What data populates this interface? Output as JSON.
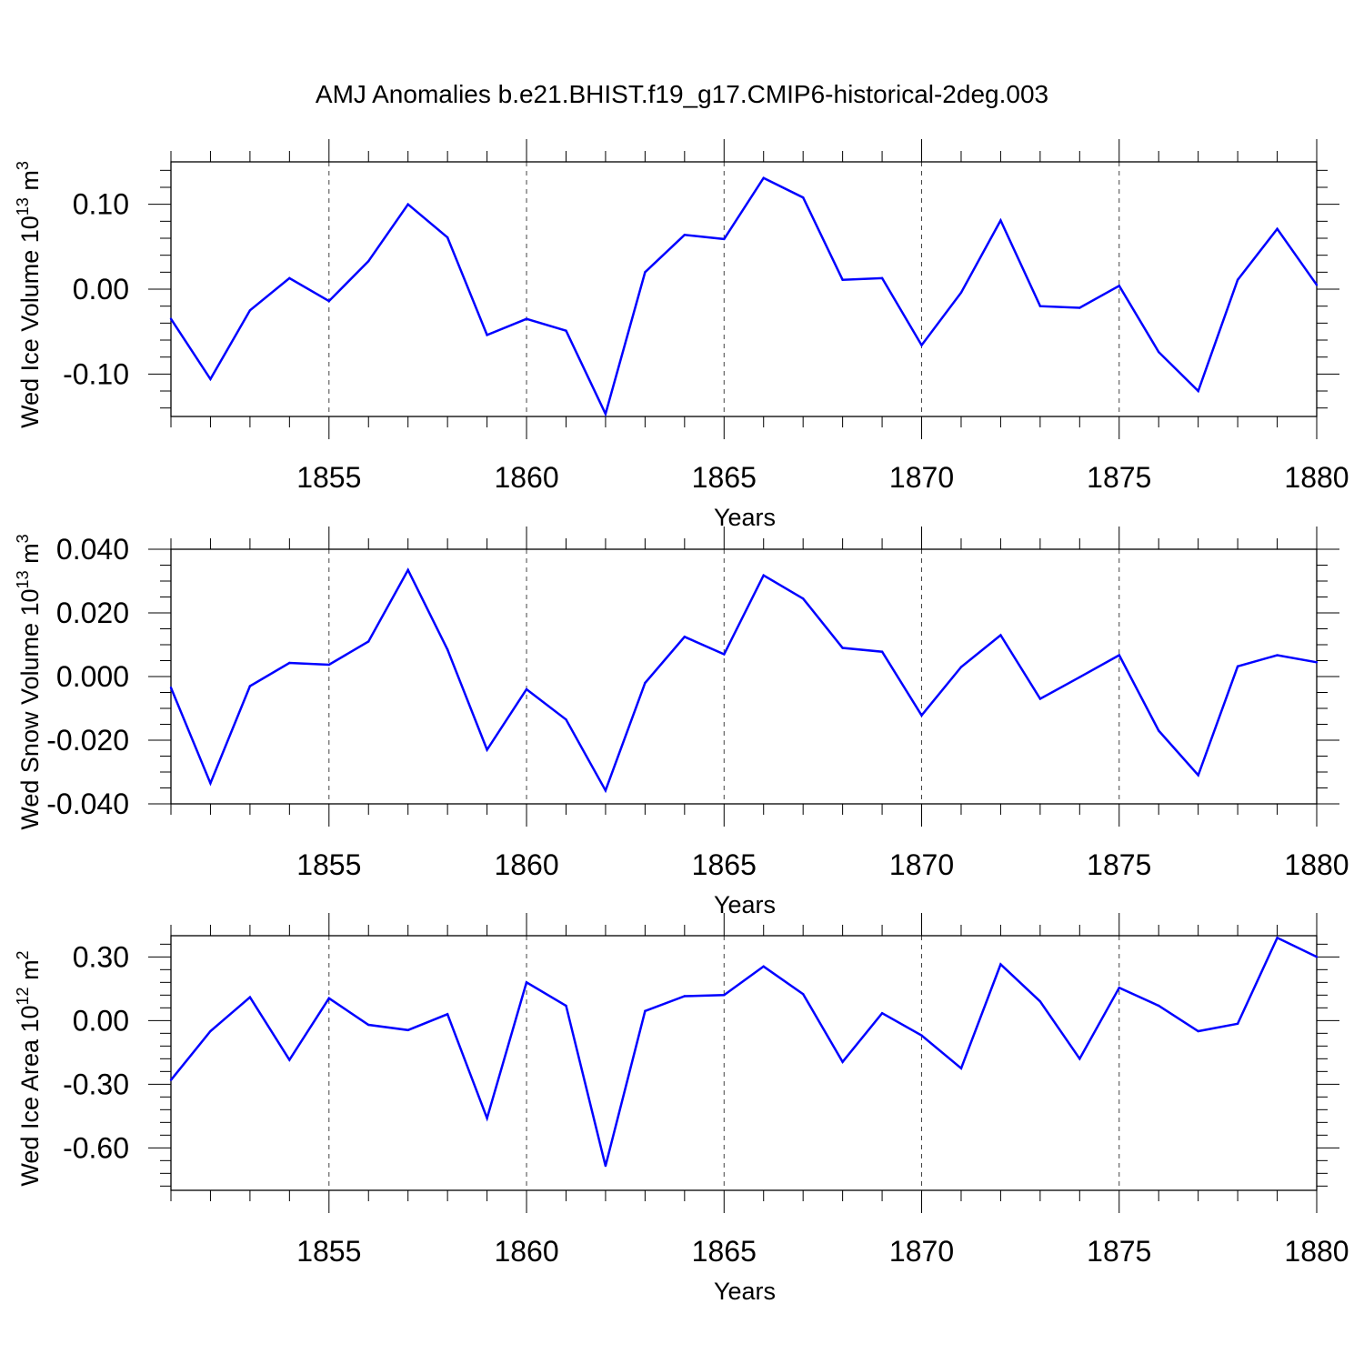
{
  "title": "AMJ Anomalies b.e21.BHIST.f19_g17.CMIP6-historical-2deg.003",
  "chart_data": [
    {
      "type": "line",
      "xlabel": "Years",
      "ylabel": "Wed Ice Volume 10",
      "ylabel_exp": "13",
      "ylabel_unit": " m",
      "ylabel_unit_exp": "3",
      "xlim": [
        1851,
        1880
      ],
      "ylim": [
        -0.15,
        0.15
      ],
      "yticks": [
        -0.1,
        0.0,
        0.1
      ],
      "ytick_labels": [
        "-0.10",
        "0.00",
        "0.10"
      ],
      "yminor_step": 0.02,
      "xticks": [
        1855,
        1860,
        1865,
        1870,
        1875,
        1880
      ],
      "xtick_labels": [
        "1855",
        "1860",
        "1865",
        "1870",
        "1875",
        "1880"
      ],
      "grid_x_dashed": true,
      "color": "#0000ff",
      "series": [
        {
          "x": [
            1851,
            1852,
            1853,
            1854,
            1855,
            1856,
            1857,
            1858,
            1859,
            1860,
            1861,
            1862,
            1863,
            1864,
            1865,
            1866,
            1867,
            1868,
            1869,
            1870,
            1871,
            1872,
            1873,
            1874,
            1875,
            1876,
            1877,
            1878,
            1879,
            1880
          ],
          "values": [
            -0.035,
            -0.106,
            -0.025,
            0.013,
            -0.014,
            0.033,
            0.1,
            0.061,
            -0.054,
            -0.035,
            -0.049,
            -0.147,
            0.02,
            0.064,
            0.059,
            0.131,
            0.108,
            0.011,
            0.013,
            -0.066,
            -0.004,
            0.081,
            -0.02,
            -0.022,
            0.004,
            -0.074,
            -0.12,
            0.011,
            0.071,
            0.005
          ]
        }
      ]
    },
    {
      "type": "line",
      "xlabel": "Years",
      "ylabel": "Wed Snow Volume 10",
      "ylabel_exp": "13",
      "ylabel_unit": " m",
      "ylabel_unit_exp": "3",
      "xlim": [
        1851,
        1880
      ],
      "ylim": [
        -0.04,
        0.04
      ],
      "yticks": [
        -0.04,
        -0.02,
        0.0,
        0.02,
        0.04
      ],
      "ytick_labels": [
        "-0.040",
        "-0.020",
        "0.000",
        "0.020",
        "0.040"
      ],
      "yminor_step": 0.005,
      "xticks": [
        1855,
        1860,
        1865,
        1870,
        1875,
        1880
      ],
      "xtick_labels": [
        "1855",
        "1860",
        "1865",
        "1870",
        "1875",
        "1880"
      ],
      "grid_x_dashed": true,
      "color": "#0000ff",
      "series": [
        {
          "x": [
            1851,
            1852,
            1853,
            1854,
            1855,
            1856,
            1857,
            1858,
            1859,
            1860,
            1861,
            1862,
            1863,
            1864,
            1865,
            1866,
            1867,
            1868,
            1869,
            1870,
            1871,
            1872,
            1873,
            1874,
            1875,
            1876,
            1877,
            1878,
            1879,
            1880
          ],
          "values": [
            -0.0035,
            -0.0335,
            -0.003,
            0.0043,
            0.0037,
            0.011,
            0.0335,
            0.0085,
            -0.023,
            -0.004,
            -0.0135,
            -0.0358,
            -0.002,
            0.0125,
            0.007,
            0.0318,
            0.0245,
            0.009,
            0.0078,
            -0.0122,
            0.003,
            0.013,
            -0.007,
            -0.0002,
            0.0067,
            -0.017,
            -0.031,
            0.0032,
            0.0067,
            0.0045
          ]
        }
      ]
    },
    {
      "type": "line",
      "xlabel": "Years",
      "ylabel": "Wed Ice Area 10",
      "ylabel_exp": "12",
      "ylabel_unit": " m",
      "ylabel_unit_exp": "2",
      "xlim": [
        1851,
        1880
      ],
      "ylim": [
        -0.8,
        0.4
      ],
      "yticks": [
        -0.6,
        -0.3,
        0.0,
        0.3
      ],
      "ytick_labels": [
        "-0.60",
        "-0.30",
        "0.00",
        "0.30"
      ],
      "yminor_step": 0.06,
      "xticks": [
        1855,
        1860,
        1865,
        1870,
        1875,
        1880
      ],
      "xtick_labels": [
        "1855",
        "1860",
        "1865",
        "1870",
        "1875",
        "1880"
      ],
      "grid_x_dashed": true,
      "color": "#0000ff",
      "series": [
        {
          "x": [
            1851,
            1852,
            1853,
            1854,
            1855,
            1856,
            1857,
            1858,
            1859,
            1860,
            1861,
            1862,
            1863,
            1864,
            1865,
            1866,
            1867,
            1868,
            1869,
            1870,
            1871,
            1872,
            1873,
            1874,
            1875,
            1876,
            1877,
            1878,
            1879,
            1880
          ],
          "values": [
            -0.28,
            -0.05,
            0.11,
            -0.185,
            0.105,
            -0.02,
            -0.045,
            0.03,
            -0.46,
            0.18,
            0.07,
            -0.685,
            0.045,
            0.115,
            0.12,
            0.255,
            0.125,
            -0.195,
            0.035,
            -0.07,
            -0.225,
            0.265,
            0.09,
            -0.18,
            0.155,
            0.07,
            -0.05,
            -0.015,
            0.39,
            0.3
          ]
        }
      ]
    }
  ]
}
